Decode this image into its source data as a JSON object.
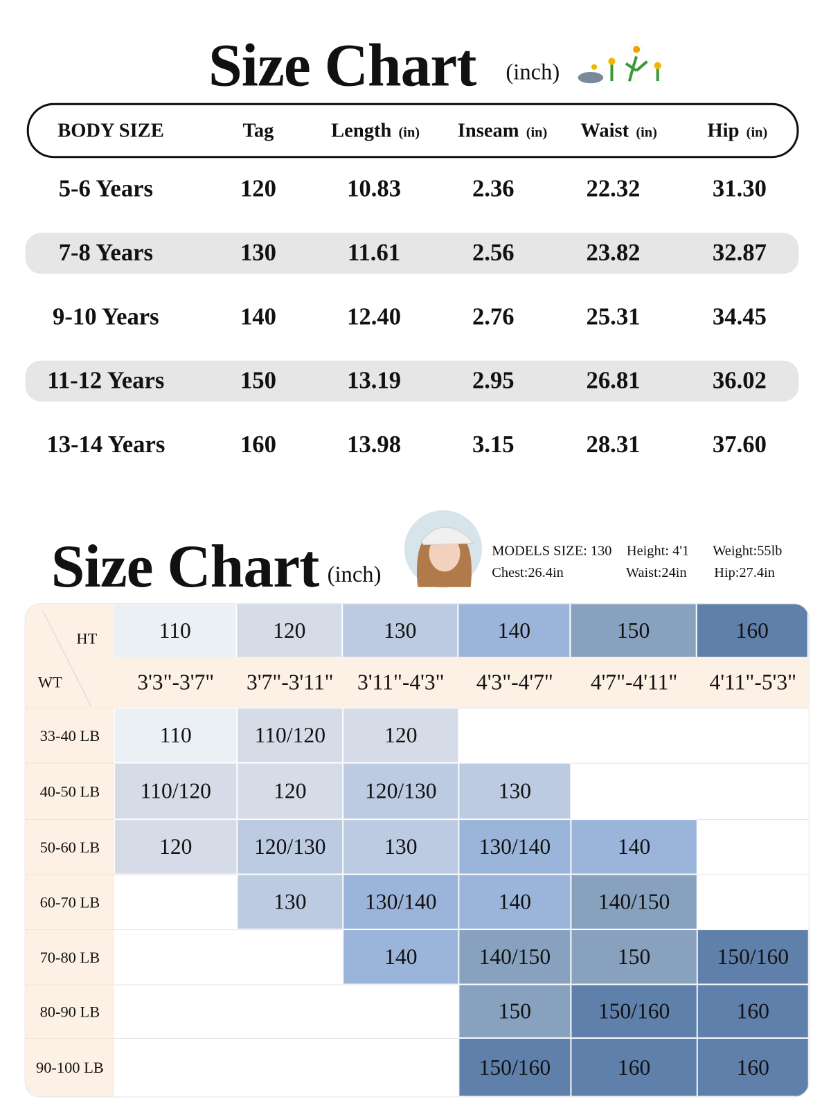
{
  "size_chart": {
    "title": "Size Chart",
    "unit": "(inch)",
    "columns": [
      {
        "label": "BODY SIZE"
      },
      {
        "label": "Tag"
      },
      {
        "label": "Length",
        "unit": "(in)"
      },
      {
        "label": "Inseam",
        "unit": "(in)"
      },
      {
        "label": "Waist",
        "unit": "(in)"
      },
      {
        "label": "Hip",
        "unit": "(in)"
      }
    ],
    "rows": [
      [
        "5-6 Years",
        120,
        "10.83",
        "2.36",
        "22.32",
        "31.30"
      ],
      [
        "7-8 Years",
        130,
        "11.61",
        "2.56",
        "23.82",
        "32.87"
      ],
      [
        "9-10 Years",
        140,
        "12.40",
        "2.76",
        "25.31",
        "34.45"
      ],
      [
        "11-12 Years",
        150,
        "13.19",
        "2.95",
        "26.81",
        "36.02"
      ],
      [
        "13-14 Years",
        160,
        "13.98",
        "3.15",
        "28.31",
        "37.60"
      ]
    ]
  },
  "fit_chart": {
    "title": "Size Chart",
    "unit": "(inch)",
    "model": {
      "size": "MODELS  SIZE: 130",
      "height": "Height: 4'1",
      "weight": "Weight:55lb",
      "chest": "Chest:26.4in",
      "waist": "Waist:24in",
      "hip": "Hip:27.4in"
    },
    "height_label": "HT",
    "weight_label": "WT",
    "heights": [
      110,
      120,
      130,
      140,
      150,
      160
    ],
    "height_ranges": [
      "3'3\"-3'7\"",
      "3'7\"-3'11\"",
      "3'11\"-4'3\"",
      "4'3\"-4'7\"",
      "4'7\"-4'11\"",
      "4'11\"-5'3\""
    ],
    "palette": [
      "#ebf0f5",
      "#d5dce7",
      "#bccbe2",
      "#9bb4d9",
      "#87a1be",
      "#5f80ab"
    ],
    "rows": [
      {
        "weight": "33-40 LB",
        "cells": [
          "110",
          "110/120",
          "120",
          null,
          null,
          null
        ]
      },
      {
        "weight": "40-50 LB",
        "cells": [
          "110/120",
          "120",
          "120/130",
          "130",
          null,
          null
        ]
      },
      {
        "weight": "50-60 LB",
        "cells": [
          "120",
          "120/130",
          "130",
          "130/140",
          "140",
          null
        ]
      },
      {
        "weight": "60-70 LB",
        "cells": [
          null,
          "130",
          "130/140",
          "140",
          "140/150",
          null
        ]
      },
      {
        "weight": "70-80 LB",
        "cells": [
          null,
          null,
          "140",
          "140/150",
          "150",
          "150/160"
        ]
      },
      {
        "weight": "80-90 LB",
        "cells": [
          null,
          null,
          null,
          "150",
          "150/160",
          "160"
        ]
      },
      {
        "weight": "90-100 LB",
        "cells": [
          null,
          null,
          null,
          "150/160",
          "160",
          "160"
        ]
      }
    ]
  }
}
